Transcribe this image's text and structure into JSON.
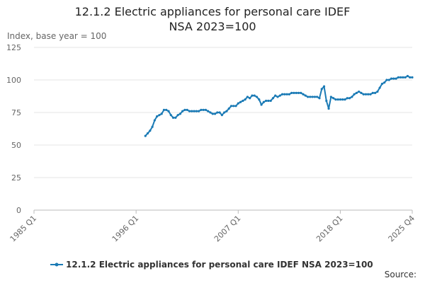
{
  "chart_data": {
    "type": "line",
    "title": "12.1.2 Electric appliances for personal care IDEF NSA 2023=100",
    "y_label": "Index, base year = 100",
    "source": "Source:",
    "categories": [
      "1985 Q1",
      null,
      null,
      null,
      null,
      null,
      null,
      null,
      null,
      null,
      null,
      null,
      null,
      null,
      null,
      null,
      null,
      null,
      null,
      null,
      null,
      null,
      null,
      null,
      null,
      null,
      null,
      null,
      null,
      null,
      null,
      null,
      null,
      null,
      null,
      null,
      null,
      null,
      null,
      null,
      null,
      null,
      null,
      null,
      "1996 Q1",
      null,
      null,
      null,
      null,
      null,
      null,
      null,
      null,
      null,
      null,
      null,
      null,
      null,
      null,
      null,
      null,
      null,
      null,
      null,
      null,
      null,
      null,
      null,
      null,
      null,
      null,
      null,
      null,
      null,
      null,
      null,
      null,
      null,
      null,
      null,
      null,
      null,
      null,
      null,
      null,
      null,
      null,
      null,
      "2007 Q1",
      null,
      null,
      null,
      null,
      null,
      null,
      null,
      null,
      null,
      null,
      null,
      null,
      null,
      null,
      null,
      null,
      null,
      null,
      null,
      null,
      null,
      null,
      null,
      null,
      null,
      null,
      null,
      null,
      null,
      null,
      null,
      null,
      null,
      null,
      null,
      null,
      null,
      null,
      null,
      null,
      null,
      null,
      null,
      "2018 Q1",
      null,
      null,
      null,
      null,
      null,
      null,
      null,
      null,
      null,
      null,
      null,
      null,
      null,
      null,
      null,
      null,
      null,
      null,
      null,
      null,
      null,
      null,
      null,
      null,
      null,
      null,
      null,
      null,
      null,
      null,
      "2025 Q4"
    ],
    "series": [
      {
        "name": "12.1.2 Electric appliances for personal care IDEF NSA 2023=100",
        "color": "#1a7ab5",
        "values": [
          null,
          null,
          null,
          null,
          null,
          null,
          null,
          null,
          null,
          null,
          null,
          null,
          null,
          null,
          null,
          null,
          null,
          null,
          null,
          null,
          null,
          null,
          null,
          null,
          null,
          null,
          null,
          null,
          null,
          null,
          null,
          null,
          null,
          null,
          null,
          null,
          null,
          null,
          null,
          null,
          null,
          null,
          null,
          null,
          null,
          null,
          null,
          null,
          57,
          59,
          61,
          64,
          69,
          72,
          73,
          74,
          77,
          77,
          76,
          73,
          71,
          71,
          73,
          74,
          76,
          77,
          77,
          76,
          76,
          76,
          76,
          76,
          77,
          77,
          77,
          76,
          75,
          74,
          74,
          75,
          75,
          73,
          75,
          76,
          78,
          80,
          80,
          80,
          82,
          83,
          84,
          85,
          87,
          86,
          88,
          88,
          87,
          85,
          81,
          83,
          84,
          84,
          84,
          86,
          88,
          87,
          88,
          89,
          89,
          89,
          89,
          90,
          90,
          90,
          90,
          90,
          89,
          88,
          87,
          87,
          87,
          87,
          87,
          86,
          93,
          95,
          84,
          78,
          87,
          86,
          85,
          85,
          85,
          85,
          85,
          86,
          86,
          87,
          89,
          90,
          91,
          90,
          89,
          89,
          89,
          89,
          90,
          90,
          91,
          94,
          97,
          98,
          100,
          100,
          101,
          101,
          101,
          102,
          102,
          102,
          102,
          103,
          102,
          102
        ]
      }
    ],
    "ylim": [
      0,
      125
    ],
    "yticks": [
      0,
      25,
      50,
      75,
      100,
      125
    ],
    "grid": true
  }
}
